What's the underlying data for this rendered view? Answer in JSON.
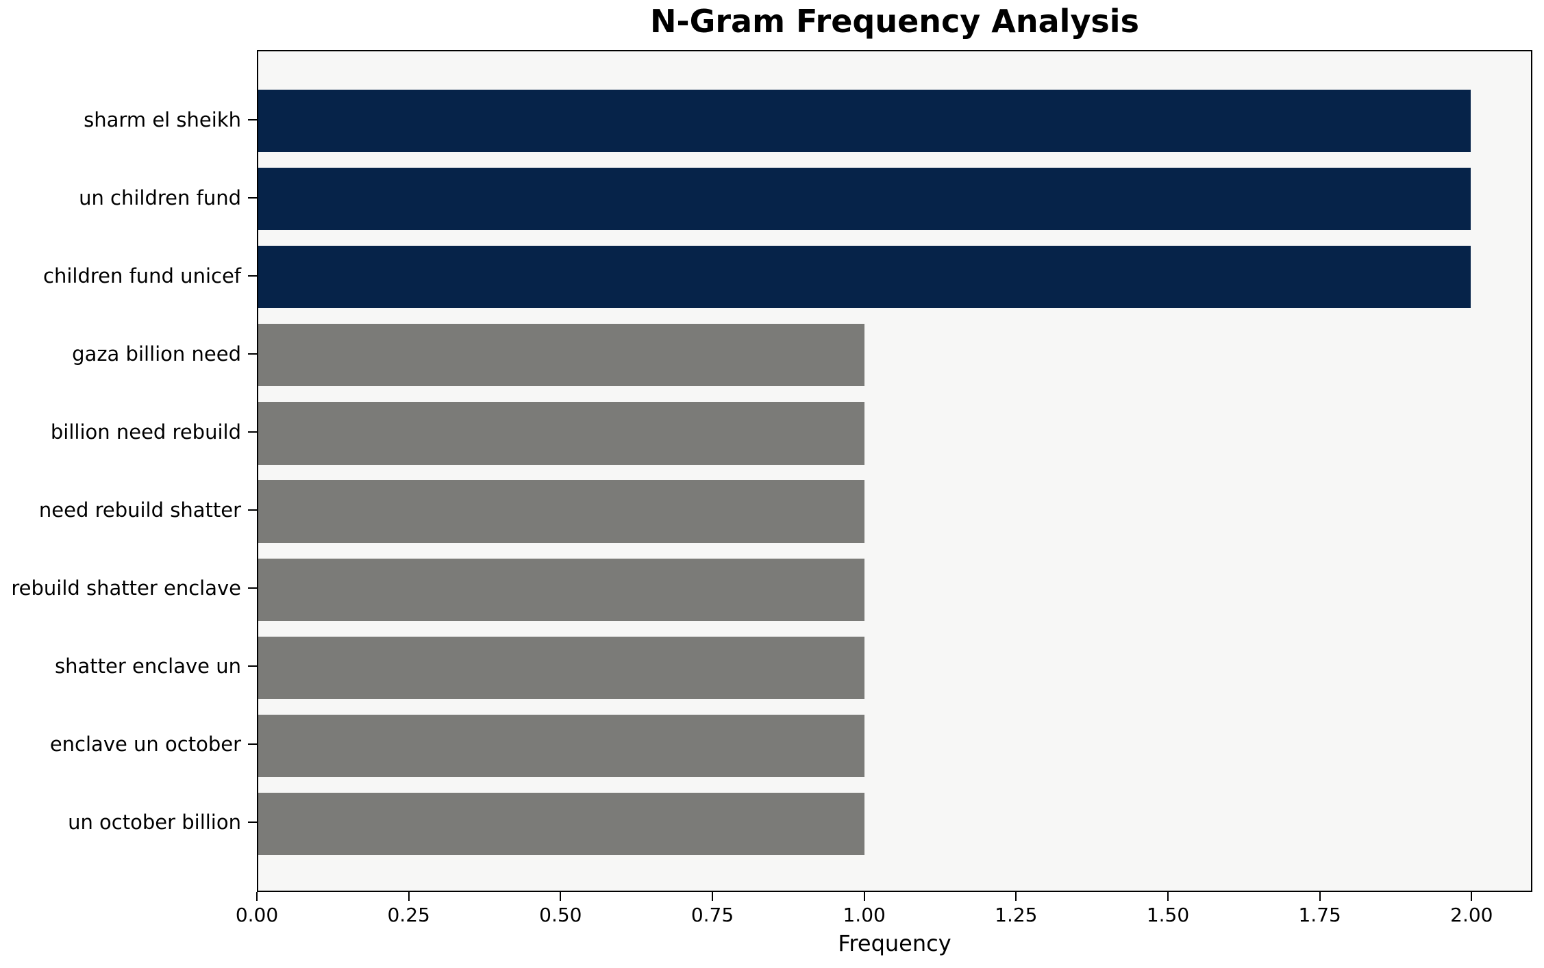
{
  "chart_data": {
    "type": "bar",
    "orientation": "horizontal",
    "title": "N-Gram Frequency Analysis",
    "xlabel": "Frequency",
    "ylabel": "",
    "categories": [
      "sharm el sheikh",
      "un children fund",
      "children fund unicef",
      "gaza billion need",
      "billion need rebuild",
      "need rebuild shatter",
      "rebuild shatter enclave",
      "shatter enclave un",
      "enclave un october",
      "un october billion"
    ],
    "values": [
      2,
      2,
      2,
      1,
      1,
      1,
      1,
      1,
      1,
      1
    ],
    "bar_colors": [
      "#062349",
      "#062349",
      "#062349",
      "#7b7b78",
      "#7b7b78",
      "#7b7b78",
      "#7b7b78",
      "#7b7b78",
      "#7b7b78",
      "#7b7b78"
    ],
    "xlim": [
      0,
      2.1
    ],
    "xticks": [
      {
        "value": 0.0,
        "label": "0.00"
      },
      {
        "value": 0.25,
        "label": "0.25"
      },
      {
        "value": 0.5,
        "label": "0.50"
      },
      {
        "value": 0.75,
        "label": "0.75"
      },
      {
        "value": 1.0,
        "label": "1.00"
      },
      {
        "value": 1.25,
        "label": "1.25"
      },
      {
        "value": 1.5,
        "label": "1.50"
      },
      {
        "value": 1.75,
        "label": "1.75"
      },
      {
        "value": 2.0,
        "label": "2.00"
      }
    ],
    "grid": false,
    "legend": "none",
    "colors": {
      "highlight": "#062349",
      "default": "#7b7b78",
      "plot_background": "#f7f7f6",
      "figure_background": "#ffffff",
      "text": "#000000"
    }
  }
}
